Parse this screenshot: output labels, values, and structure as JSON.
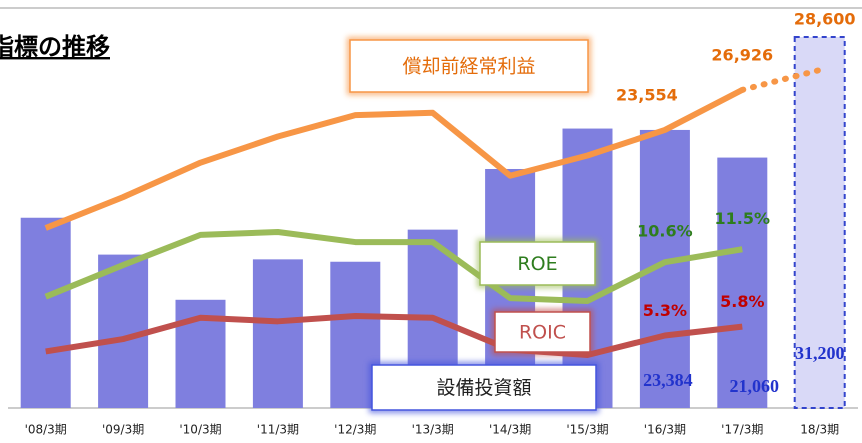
{
  "chart_data": {
    "type": "bar-line",
    "title": "指標の推移",
    "categories": [
      "'08/3期",
      "'09/3期",
      "'10/3期",
      "'11/3期",
      "'12/3期",
      "'13/3期",
      "'14/3期",
      "'15/3期",
      "'16/3期",
      "'17/3期",
      "18/3期"
    ],
    "series": [
      {
        "name": "償却前経常利益",
        "type": "line",
        "color": "#f79646",
        "label_color": "#e46c0a",
        "values": [
          15300,
          17900,
          20800,
          23000,
          24800,
          25000,
          19700,
          21400,
          23554,
          26926,
          28600
        ],
        "value_labels": [
          null,
          null,
          null,
          null,
          null,
          null,
          null,
          null,
          "23,554",
          "26,926",
          "28,600"
        ]
      },
      {
        "name": "ROE",
        "type": "line",
        "color": "#9bbb59",
        "label_color": "#2e7d1e",
        "values": [
          8.2,
          10.4,
          12.5,
          12.7,
          12.0,
          12.0,
          8.1,
          7.9,
          10.6,
          11.5,
          null
        ],
        "value_labels": [
          null,
          null,
          null,
          null,
          null,
          null,
          null,
          null,
          "10.6%",
          "11.5%",
          null
        ]
      },
      {
        "name": "ROIC",
        "type": "line",
        "color": "#c0504d",
        "label_color": "#c00000",
        "values": [
          4.4,
          5.1,
          6.3,
          6.1,
          6.4,
          6.3,
          4.5,
          4.2,
          5.3,
          5.8,
          null
        ],
        "value_labels": [
          null,
          null,
          null,
          null,
          null,
          null,
          null,
          null,
          "5.3%",
          "5.8%",
          null
        ]
      },
      {
        "name": "設備投資額",
        "type": "bar",
        "color": "#7f7fdf",
        "label_color": "#2233cc",
        "values": [
          16000,
          12900,
          9100,
          12500,
          12300,
          15000,
          20100,
          23500,
          23384,
          21060,
          31200
        ],
        "value_labels": [
          null,
          null,
          null,
          null,
          null,
          null,
          null,
          null,
          "23,384",
          "21,060",
          "31,200"
        ]
      }
    ]
  }
}
